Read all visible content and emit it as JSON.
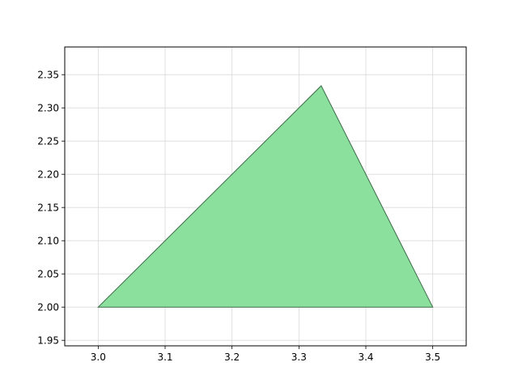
{
  "chart_data": {
    "type": "area",
    "title": "",
    "xlabel": "",
    "ylabel": "",
    "xlim": [
      2.95,
      3.55
    ],
    "ylim": [
      1.9417,
      2.3917
    ],
    "xticks": [
      3.0,
      3.1,
      3.2,
      3.3,
      3.4,
      3.5
    ],
    "xtick_labels": [
      "3.0",
      "3.1",
      "3.2",
      "3.3",
      "3.4",
      "3.5"
    ],
    "yticks": [
      1.95,
      2.0,
      2.05,
      2.1,
      2.15,
      2.2,
      2.25,
      2.3,
      2.35
    ],
    "ytick_labels": [
      "1.95",
      "2.00",
      "2.05",
      "2.10",
      "2.15",
      "2.20",
      "2.25",
      "2.30",
      "2.35"
    ],
    "grid": true,
    "series": [
      {
        "shape": "polygon",
        "points": [
          {
            "x": 3.0,
            "y": 2.0
          },
          {
            "x": 3.3333,
            "y": 2.3333
          },
          {
            "x": 3.5,
            "y": 2.0
          }
        ],
        "fill_color": "#8ae09c",
        "edge_color": "#3d6b4a"
      }
    ],
    "colors": {
      "grid": "#d9d9d9",
      "axes": "#000000",
      "background": "#ffffff"
    }
  }
}
